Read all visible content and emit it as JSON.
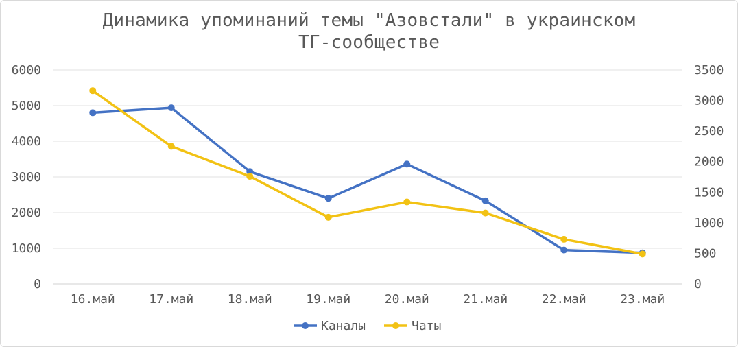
{
  "chart_data": {
    "type": "line",
    "title_line1": "Динамика упоминаний темы \"Азовстали\" в украинском",
    "title_line2": "ТГ-сообществе",
    "categories": [
      "16.май",
      "17.май",
      "18.май",
      "19.май",
      "20.май",
      "21.май",
      "22.май",
      "23.май"
    ],
    "y_left": {
      "min": 0,
      "max": 6000,
      "step": 1000,
      "ticks": [
        "0",
        "1000",
        "2000",
        "3000",
        "4000",
        "5000",
        "6000"
      ]
    },
    "y_right": {
      "min": 0,
      "max": 3500,
      "step": 500,
      "ticks": [
        "0",
        "500",
        "1000",
        "1500",
        "2000",
        "2500",
        "3000",
        "3500"
      ]
    },
    "series": [
      {
        "name": "Каналы",
        "axis": "left",
        "color": "#4472c4",
        "values": [
          4800,
          4940,
          3150,
          2400,
          3360,
          2330,
          950,
          870
        ]
      },
      {
        "name": "Чаты",
        "axis": "right",
        "color": "#f2c214",
        "values": [
          3160,
          2250,
          1760,
          1090,
          1340,
          1160,
          730,
          490
        ]
      }
    ],
    "grid": true,
    "legend_position": "bottom"
  }
}
